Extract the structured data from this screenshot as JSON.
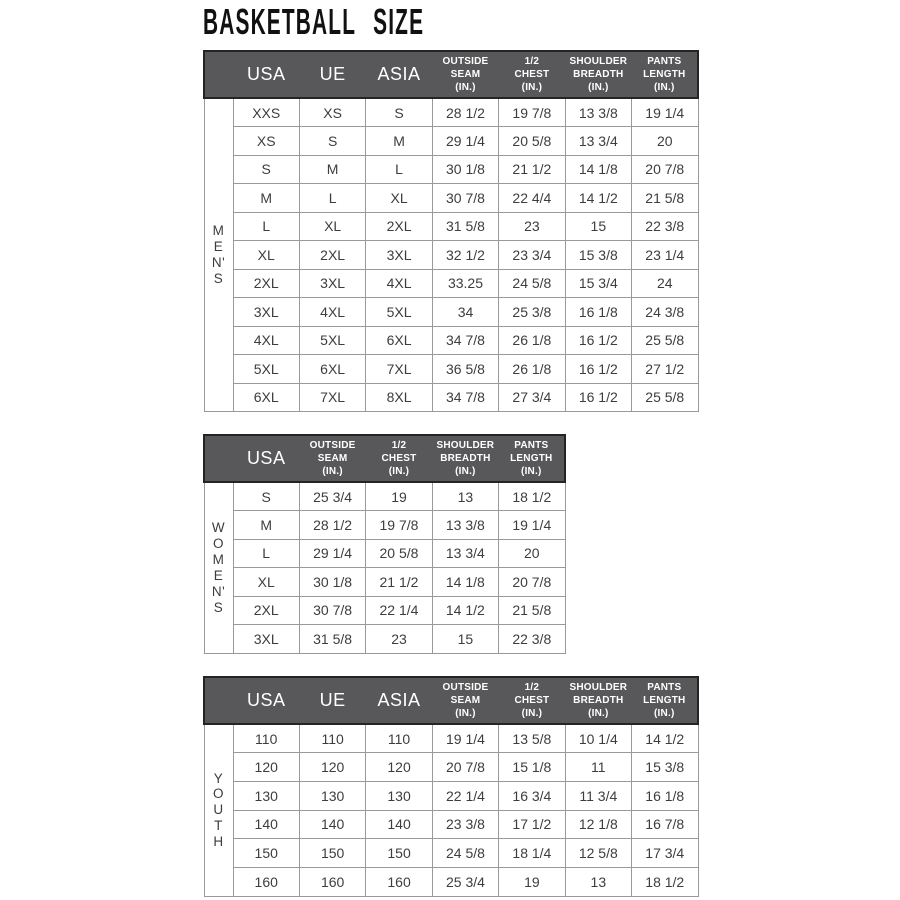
{
  "title": "BASKETBALL SIZE",
  "units_note": "(IN.)",
  "colors": {
    "header_bg": "#58585a",
    "header_text": "#ffffff",
    "header_outline": "#242424",
    "cell_border": "#999999",
    "cell_text": "#3d3d3d",
    "page_bg": "#ffffff",
    "title_text": "#111111"
  },
  "tables": [
    {
      "id": "mens",
      "group_label": "MEN'S",
      "group_label_stacked": "M\nE\nN'\nS",
      "columns": [
        "USA",
        "UE",
        "ASIA",
        "OUTSIDE\nSEAM\n(IN.)",
        "1/2\nCHEST\n(IN.)",
        "SHOULDER\nBREADTH\n(IN.)",
        "PANTS\nLENGTH\n(IN.)"
      ],
      "rows": [
        [
          "XXS",
          "XS",
          "S",
          "28 1/2",
          "19 7/8",
          "13 3/8",
          "19 1/4"
        ],
        [
          "XS",
          "S",
          "M",
          "29 1/4",
          "20 5/8",
          "13 3/4",
          "20"
        ],
        [
          "S",
          "M",
          "L",
          "30 1/8",
          "21 1/2",
          "14 1/8",
          "20 7/8"
        ],
        [
          "M",
          "L",
          "XL",
          "30 7/8",
          "22 4/4",
          "14 1/2",
          "21 5/8"
        ],
        [
          "L",
          "XL",
          "2XL",
          "31 5/8",
          "23",
          "15",
          "22 3/8"
        ],
        [
          "XL",
          "2XL",
          "3XL",
          "32 1/2",
          "23 3/4",
          "15 3/8",
          "23 1/4"
        ],
        [
          "2XL",
          "3XL",
          "4XL",
          "33.25",
          "24 5/8",
          "15 3/4",
          "24"
        ],
        [
          "3XL",
          "4XL",
          "5XL",
          "34",
          "25 3/8",
          "16 1/8",
          "24 3/8"
        ],
        [
          "4XL",
          "5XL",
          "6XL",
          "34 7/8",
          "26 1/8",
          "16 1/2",
          "25 5/8"
        ],
        [
          "5XL",
          "6XL",
          "7XL",
          "36 5/8",
          "26 1/8",
          "16 1/2",
          "27 1/2"
        ],
        [
          "6XL",
          "7XL",
          "8XL",
          "34 7/8",
          "27 3/4",
          "16 1/2",
          "25 5/8"
        ]
      ]
    },
    {
      "id": "womens",
      "group_label": "WOMEN'S",
      "group_label_stacked": "W\nO\nM\nE\nN'\nS",
      "columns": [
        "USA",
        "OUTSIDE\nSEAM\n(IN.)",
        "1/2\nCHEST\n(IN.)",
        "SHOULDER\nBREADTH\n(IN.)",
        "PANTS\nLENGTH\n(IN.)"
      ],
      "rows": [
        [
          "S",
          "25 3/4",
          "19",
          "13",
          "18 1/2"
        ],
        [
          "M",
          "28 1/2",
          "19 7/8",
          "13 3/8",
          "19 1/4"
        ],
        [
          "L",
          "29 1/4",
          "20 5/8",
          "13 3/4",
          "20"
        ],
        [
          "XL",
          "30 1/8",
          "21 1/2",
          "14 1/8",
          "20 7/8"
        ],
        [
          "2XL",
          "30 7/8",
          "22 1/4",
          "14 1/2",
          "21 5/8"
        ],
        [
          "3XL",
          "31 5/8",
          "23",
          "15",
          "22 3/8"
        ]
      ]
    },
    {
      "id": "youth",
      "group_label": "YOUTH",
      "group_label_stacked": "Y\nO\nU\nT\nH",
      "columns": [
        "USA",
        "UE",
        "ASIA",
        "OUTSIDE\nSEAM\n(IN.)",
        "1/2\nCHEST\n(IN.)",
        "SHOULDER\nBREADTH\n(IN.)",
        "PANTS\nLENGTH\n(IN.)"
      ],
      "rows": [
        [
          "110",
          "110",
          "110",
          "19 1/4",
          "13 5/8",
          "10 1/4",
          "14 1/2"
        ],
        [
          "120",
          "120",
          "120",
          "20 7/8",
          "15 1/8",
          "11",
          "15 3/8"
        ],
        [
          "130",
          "130",
          "130",
          "22 1/4",
          "16 3/4",
          "11 3/4",
          "16 1/8"
        ],
        [
          "140",
          "140",
          "140",
          "23 3/8",
          "17 1/2",
          "12 1/8",
          "16 7/8"
        ],
        [
          "150",
          "150",
          "150",
          "24 5/8",
          "18 1/4",
          "12 5/8",
          "17 3/4"
        ],
        [
          "160",
          "160",
          "160",
          "25 3/4",
          "19",
          "13",
          "18 1/2"
        ]
      ]
    }
  ]
}
